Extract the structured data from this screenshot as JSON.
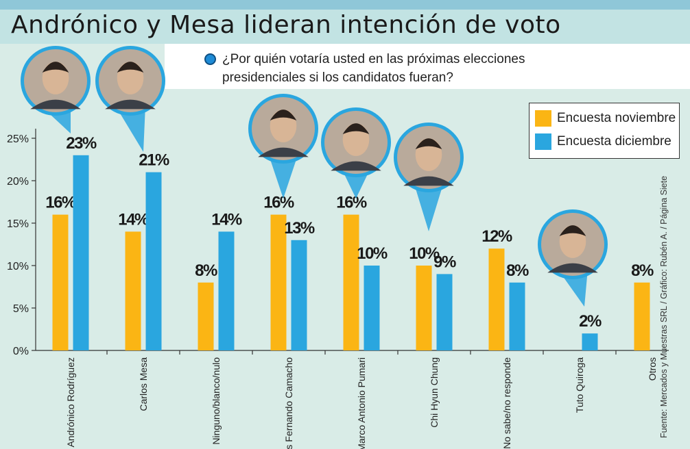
{
  "header": {
    "title": "Andrónico y Mesa lideran intención de voto",
    "question": "¿Por quién votaría usted en las próximas elecciones presidenciales si los candidatos fueran?"
  },
  "legend": {
    "items": [
      {
        "label": "Encuesta noviembre",
        "color": "#fbb514"
      },
      {
        "label": "Encuesta diciembre",
        "color": "#2aa6df"
      }
    ]
  },
  "source": "Fuente: Mercados y Muestras SRL / Gráfico: Rubén A. / Página Siete",
  "chart_data": {
    "type": "bar",
    "title": "Andrónico y Mesa lideran intención de voto",
    "subtitle": "¿Por quién votaría usted en las próximas elecciones presidenciales si los candidatos fueran?",
    "xlabel": "",
    "ylabel": "",
    "ylim": [
      0,
      25
    ],
    "yticks": [
      0,
      5,
      10,
      15,
      20,
      25
    ],
    "ytick_labels": [
      "0%",
      "5%",
      "10%",
      "15%",
      "20%",
      "25%"
    ],
    "grid": false,
    "legend_position": "top-right",
    "categories": [
      "Andrónico Rodríguez",
      "Carlos Mesa",
      "Ninguno/blanco/nulo",
      "Luis Fernando Camacho",
      "Marco Antonio Pumari",
      "Chi Hyun Chung",
      "No sabe/no responde",
      "Tuto Quiroga",
      "Otros"
    ],
    "series": [
      {
        "name": "Encuesta noviembre",
        "color": "#fbb514",
        "values": [
          16,
          14,
          8,
          16,
          16,
          10,
          12,
          null,
          8
        ],
        "labels": [
          "16%",
          "14%",
          "8%",
          "16%",
          "16%",
          "10%",
          "12%",
          "",
          "8%"
        ]
      },
      {
        "name": "Encuesta diciembre",
        "color": "#2aa6df",
        "values": [
          23,
          21,
          14,
          13,
          10,
          9,
          8,
          2,
          null
        ],
        "labels": [
          "23%",
          "21%",
          "14%",
          "13%",
          "10%",
          "9%",
          "8%",
          "2%",
          ""
        ]
      }
    ]
  }
}
